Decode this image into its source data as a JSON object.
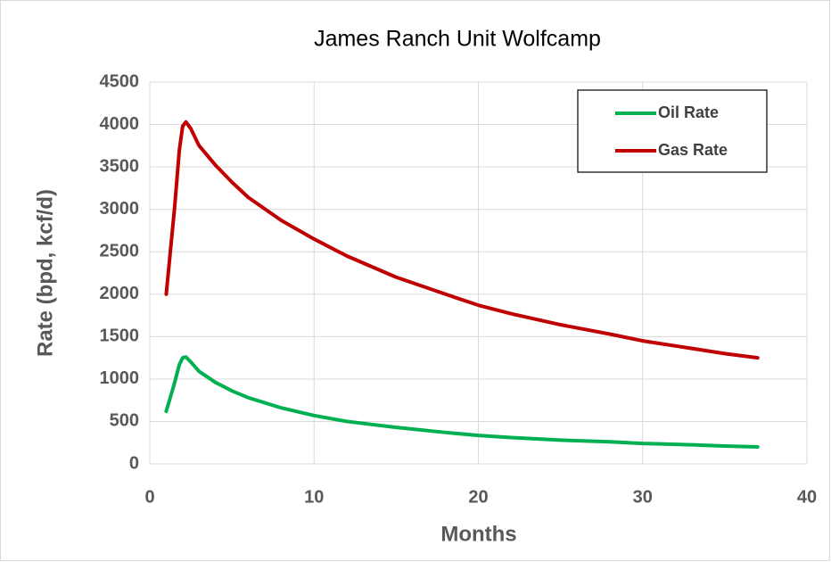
{
  "chart_data": {
    "type": "line",
    "title": "James Ranch Unit Wolfcamp",
    "x_label": "Months",
    "y_label": "Rate (bpd, kcf/d)",
    "x": [
      1,
      1.5,
      1.8,
      2,
      2.2,
      2.5,
      3,
      4,
      5,
      6,
      8,
      10,
      12,
      15,
      18,
      20,
      22,
      25,
      28,
      30,
      33,
      35,
      37
    ],
    "series": [
      {
        "name": "Oil Rate",
        "color": "#00b050",
        "values": [
          620,
          950,
          1170,
          1250,
          1260,
          1200,
          1090,
          960,
          860,
          780,
          660,
          570,
          500,
          430,
          370,
          335,
          310,
          280,
          260,
          240,
          225,
          210,
          200
        ]
      },
      {
        "name": "Gas Rate",
        "color": "#c00000",
        "values": [
          2000,
          3000,
          3700,
          3980,
          4030,
          3950,
          3750,
          3520,
          3320,
          3140,
          2870,
          2650,
          2450,
          2200,
          2000,
          1870,
          1770,
          1640,
          1530,
          1450,
          1360,
          1300,
          1250
        ]
      }
    ],
    "xlim": [
      0,
      40
    ],
    "xticks": [
      0,
      10,
      20,
      30,
      40
    ],
    "ylim": [
      0,
      4500
    ],
    "yticks": [
      0,
      500,
      1000,
      1500,
      2000,
      2500,
      3000,
      3500,
      4000,
      4500
    ],
    "grid": true,
    "legend": "upper right"
  }
}
